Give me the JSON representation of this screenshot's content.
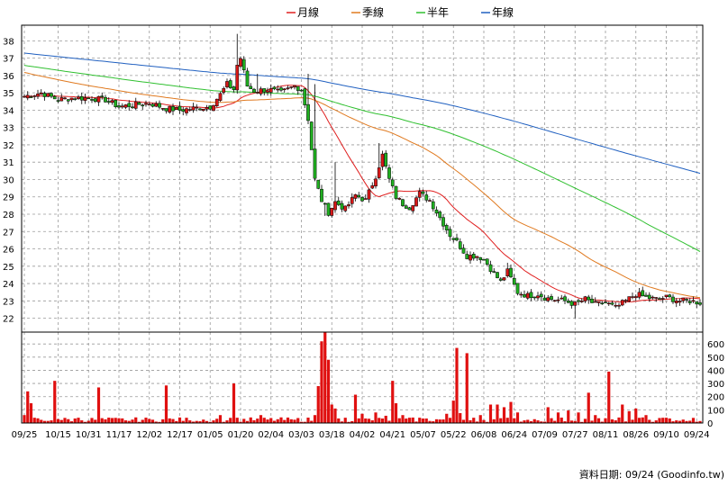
{
  "chart_data": {
    "type": "candlestick",
    "legend": [
      {
        "name": "月線",
        "color": "#e02020"
      },
      {
        "name": "季線",
        "color": "#e07a20"
      },
      {
        "name": "半年",
        "color": "#30c030"
      },
      {
        "name": "年線",
        "color": "#2060c0"
      }
    ],
    "price_axis": {
      "ylim": [
        21.2,
        38.9
      ],
      "ticks": [
        22,
        23,
        24,
        25,
        26,
        27,
        28,
        29,
        30,
        31,
        32,
        33,
        34,
        35,
        36,
        37,
        38
      ]
    },
    "volume_axis": {
      "ylim": [
        0,
        690
      ],
      "ticks": [
        0,
        100,
        200,
        300,
        400,
        500,
        600
      ]
    },
    "x_labels": [
      "09/25",
      "10/15",
      "10/31",
      "11/17",
      "12/02",
      "12/17",
      "01/05",
      "01/20",
      "02/04",
      "03/03",
      "03/18",
      "04/02",
      "04/21",
      "05/07",
      "05/22",
      "06/08",
      "06/24",
      "07/09",
      "07/27",
      "08/11",
      "08/26",
      "09/10",
      "09/24"
    ],
    "x_label_positions": [
      0,
      10,
      19,
      28,
      37,
      46,
      55,
      64,
      73,
      82,
      91,
      100,
      109,
      118,
      127,
      136,
      145,
      154,
      163,
      172,
      181,
      190,
      199
    ],
    "n_bars": 201,
    "close_anchors": [
      [
        0,
        34.8
      ],
      [
        5,
        35.0
      ],
      [
        10,
        34.6
      ],
      [
        14,
        34.7
      ],
      [
        19,
        34.7
      ],
      [
        24,
        34.6
      ],
      [
        28,
        34.2
      ],
      [
        32,
        34.3
      ],
      [
        37,
        34.4
      ],
      [
        42,
        34.1
      ],
      [
        46,
        34.0
      ],
      [
        50,
        34.1
      ],
      [
        55,
        34.2
      ],
      [
        58,
        34.9
      ],
      [
        60,
        35.5
      ],
      [
        62,
        35.2
      ],
      [
        63,
        36.6
      ],
      [
        64,
        37.0
      ],
      [
        66,
        35.4
      ],
      [
        68,
        35.1
      ],
      [
        72,
        35.2
      ],
      [
        76,
        35.0
      ],
      [
        80,
        35.4
      ],
      [
        82,
        35.2
      ],
      [
        84,
        33.5
      ],
      [
        86,
        30.0
      ],
      [
        88,
        28.8
      ],
      [
        90,
        28.1
      ],
      [
        92,
        28.7
      ],
      [
        95,
        28.3
      ],
      [
        98,
        29.1
      ],
      [
        101,
        28.8
      ],
      [
        104,
        30.2
      ],
      [
        106,
        31.4
      ],
      [
        108,
        30.0
      ],
      [
        110,
        29.0
      ],
      [
        112,
        28.6
      ],
      [
        114,
        28.4
      ],
      [
        117,
        29.2
      ],
      [
        120,
        28.8
      ],
      [
        123,
        27.8
      ],
      [
        126,
        26.8
      ],
      [
        128,
        26.4
      ],
      [
        131,
        25.6
      ],
      [
        134,
        25.6
      ],
      [
        136,
        25.4
      ],
      [
        139,
        24.6
      ],
      [
        141,
        24.1
      ],
      [
        143,
        24.7
      ],
      [
        146,
        23.5
      ],
      [
        149,
        23.3
      ],
      [
        152,
        23.4
      ],
      [
        154,
        23.2
      ],
      [
        156,
        23.1
      ],
      [
        160,
        23.0
      ],
      [
        163,
        22.8
      ],
      [
        166,
        23.1
      ],
      [
        169,
        22.8
      ],
      [
        172,
        22.9
      ],
      [
        175,
        22.6
      ],
      [
        178,
        23.0
      ],
      [
        181,
        23.4
      ],
      [
        184,
        23.2
      ],
      [
        187,
        23.1
      ],
      [
        190,
        23.2
      ],
      [
        194,
        23.0
      ],
      [
        197,
        23.0
      ],
      [
        200,
        22.9
      ]
    ],
    "spikes": [
      [
        63,
        38.4
      ],
      [
        64,
        36.5
      ],
      [
        69,
        36.1
      ],
      [
        84,
        36.1
      ],
      [
        86,
        35.5
      ],
      [
        89,
        27.9
      ],
      [
        92,
        31.0
      ],
      [
        105,
        32.1
      ],
      [
        143,
        25.2
      ],
      [
        163,
        22.0
      ]
    ],
    "volume_anchors": [
      [
        0,
        60
      ],
      [
        1,
        240
      ],
      [
        2,
        150
      ],
      [
        3,
        40
      ],
      [
        8,
        20
      ],
      [
        9,
        320
      ],
      [
        10,
        30
      ],
      [
        16,
        40
      ],
      [
        22,
        270
      ],
      [
        30,
        20
      ],
      [
        38,
        25
      ],
      [
        42,
        285
      ],
      [
        49,
        20
      ],
      [
        54,
        15
      ],
      [
        58,
        60
      ],
      [
        60,
        20
      ],
      [
        62,
        300
      ],
      [
        63,
        40
      ],
      [
        70,
        60
      ],
      [
        80,
        25
      ],
      [
        86,
        60
      ],
      [
        87,
        280
      ],
      [
        88,
        620
      ],
      [
        89,
        690
      ],
      [
        90,
        480
      ],
      [
        91,
        140
      ],
      [
        92,
        110
      ],
      [
        95,
        40
      ],
      [
        98,
        215
      ],
      [
        100,
        70
      ],
      [
        104,
        80
      ],
      [
        107,
        55
      ],
      [
        109,
        320
      ],
      [
        110,
        150
      ],
      [
        112,
        60
      ],
      [
        117,
        40
      ],
      [
        125,
        70
      ],
      [
        127,
        170
      ],
      [
        128,
        570
      ],
      [
        129,
        75
      ],
      [
        131,
        530
      ],
      [
        133,
        40
      ],
      [
        135,
        60
      ],
      [
        138,
        140
      ],
      [
        140,
        140
      ],
      [
        142,
        120
      ],
      [
        144,
        160
      ],
      [
        146,
        80
      ],
      [
        148,
        20
      ],
      [
        152,
        20
      ],
      [
        155,
        120
      ],
      [
        158,
        80
      ],
      [
        161,
        95
      ],
      [
        164,
        80
      ],
      [
        167,
        230
      ],
      [
        169,
        60
      ],
      [
        171,
        10
      ],
      [
        173,
        390
      ],
      [
        175,
        20
      ],
      [
        177,
        140
      ],
      [
        179,
        90
      ],
      [
        181,
        110
      ],
      [
        184,
        60
      ],
      [
        187,
        20
      ],
      [
        190,
        40
      ],
      [
        193,
        20
      ],
      [
        196,
        15
      ],
      [
        199,
        10
      ],
      [
        200,
        15
      ]
    ],
    "footer": "資料日期: 09/24  (Goodinfo.tw)"
  }
}
